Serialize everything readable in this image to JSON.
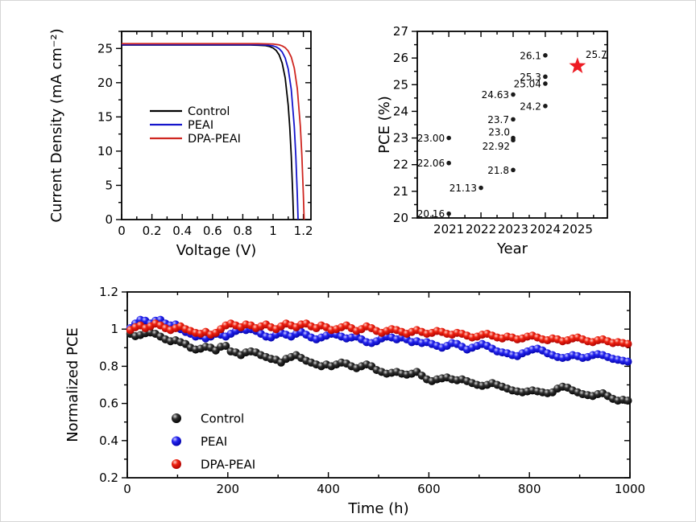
{
  "figure": {
    "background": "#ffffff"
  },
  "chart_data": [
    {
      "id": "jv-curves",
      "type": "line",
      "xlabel": "Voltage (V)",
      "ylabel": "Current Density (mA cm⁻²)",
      "xlim": [
        0,
        1.25
      ],
      "ylim": [
        0,
        27.5
      ],
      "x_major_ticks": [
        0,
        0.2,
        0.4,
        0.6,
        0.8,
        1.0,
        1.2
      ],
      "x_tick_labels": [
        "0",
        "0.2",
        "0.4",
        "0.6",
        "0.8",
        "1",
        "1.2"
      ],
      "x_minor_step": 0.1,
      "y_major_ticks": [
        0,
        5,
        10,
        15,
        20,
        25
      ],
      "y_tick_labels": [
        "0",
        "5",
        "10",
        "15",
        "20",
        "25"
      ],
      "y_minor_step": 2.5,
      "grid": false,
      "legend_position": "middle-left",
      "series": [
        {
          "name": "Control",
          "color": "#000000",
          "jsc": 25.5,
          "voc": 1.135,
          "points": [
            [
              0,
              25.5
            ],
            [
              0.1,
              25.5
            ],
            [
              0.2,
              25.5
            ],
            [
              0.3,
              25.5
            ],
            [
              0.4,
              25.5
            ],
            [
              0.5,
              25.5
            ],
            [
              0.6,
              25.5
            ],
            [
              0.7,
              25.5
            ],
            [
              0.8,
              25.5
            ],
            [
              0.85,
              25.5
            ],
            [
              0.9,
              25.48
            ],
            [
              0.95,
              25.41
            ],
            [
              0.975,
              25.3
            ],
            [
              1.0,
              25.07
            ],
            [
              1.02,
              24.72
            ],
            [
              1.04,
              24.07
            ],
            [
              1.06,
              22.87
            ],
            [
              1.08,
              20.69
            ],
            [
              1.1,
              16.67
            ],
            [
              1.11,
              13.55
            ],
            [
              1.12,
              9.32
            ],
            [
              1.13,
              3.58
            ],
            [
              1.135,
              0
            ]
          ]
        },
        {
          "name": "PEAI",
          "color": "#1414cc",
          "jsc": 25.55,
          "voc": 1.165,
          "points": [
            [
              0,
              25.55
            ],
            [
              0.1,
              25.55
            ],
            [
              0.2,
              25.55
            ],
            [
              0.3,
              25.55
            ],
            [
              0.4,
              25.55
            ],
            [
              0.5,
              25.55
            ],
            [
              0.6,
              25.55
            ],
            [
              0.7,
              25.55
            ],
            [
              0.8,
              25.55
            ],
            [
              0.9,
              25.55
            ],
            [
              0.95,
              25.5
            ],
            [
              1.0,
              25.38
            ],
            [
              1.02,
              25.23
            ],
            [
              1.04,
              24.97
            ],
            [
              1.06,
              24.49
            ],
            [
              1.08,
              23.61
            ],
            [
              1.1,
              22.0
            ],
            [
              1.12,
              19.02
            ],
            [
              1.14,
              13.57
            ],
            [
              1.15,
              9.34
            ],
            [
              1.16,
              3.59
            ],
            [
              1.165,
              0
            ]
          ]
        },
        {
          "name": "DPA-PEAI",
          "color": "#cf2620",
          "jsc": 25.7,
          "voc": 1.205,
          "points": [
            [
              0,
              25.7
            ],
            [
              0.1,
              25.7
            ],
            [
              0.2,
              25.7
            ],
            [
              0.3,
              25.7
            ],
            [
              0.4,
              25.7
            ],
            [
              0.5,
              25.7
            ],
            [
              0.6,
              25.7
            ],
            [
              0.7,
              25.7
            ],
            [
              0.8,
              25.7
            ],
            [
              0.9,
              25.7
            ],
            [
              1.0,
              25.65
            ],
            [
              1.04,
              25.53
            ],
            [
              1.06,
              25.38
            ],
            [
              1.08,
              25.12
            ],
            [
              1.1,
              24.63
            ],
            [
              1.12,
              23.75
            ],
            [
              1.14,
              22.13
            ],
            [
              1.16,
              19.13
            ],
            [
              1.18,
              13.65
            ],
            [
              1.19,
              9.38
            ],
            [
              1.2,
              3.61
            ],
            [
              1.205,
              0
            ]
          ]
        }
      ]
    },
    {
      "id": "pce-progress",
      "type": "scatter",
      "xlabel": "Year",
      "ylabel": "PCE (%)",
      "xlim": [
        2020.02,
        2025.93
      ],
      "ylim": [
        20,
        27
      ],
      "x_major_ticks": [
        2021,
        2022,
        2023,
        2024,
        2025
      ],
      "x_tick_labels": [
        "2021",
        "2022",
        "2023",
        "2024",
        "2025"
      ],
      "x_minor_step": 0.5,
      "y_major_ticks": [
        20,
        21,
        22,
        23,
        24,
        25,
        26,
        27
      ],
      "y_tick_labels": [
        "20",
        "21",
        "22",
        "23",
        "24",
        "25",
        "26",
        "27"
      ],
      "y_minor_step": 0.5,
      "grid": false,
      "point_color": "#1a1a1a",
      "points": [
        {
          "x": 2021,
          "y": 23.0,
          "label": "23.00",
          "label_pos": "left"
        },
        {
          "x": 2021,
          "y": 22.06,
          "label": "22.06",
          "label_pos": "left"
        },
        {
          "x": 2021,
          "y": 20.16,
          "label": "20.16",
          "label_pos": "left"
        },
        {
          "x": 2022,
          "y": 21.13,
          "label": "21.13",
          "label_pos": "left"
        },
        {
          "x": 2023,
          "y": 24.63,
          "label": "24.63",
          "label_pos": "left"
        },
        {
          "x": 2023,
          "y": 23.7,
          "label": "23.7",
          "label_pos": "left"
        },
        {
          "x": 2023,
          "y": 23.0,
          "label": "23.0",
          "label_pos": "above-left"
        },
        {
          "x": 2023,
          "y": 22.92,
          "label": "22.92",
          "label_pos": "below-left"
        },
        {
          "x": 2023,
          "y": 21.8,
          "label": "21.8",
          "label_pos": "left"
        },
        {
          "x": 2024,
          "y": 26.1,
          "label": "26.1",
          "label_pos": "left"
        },
        {
          "x": 2024,
          "y": 25.3,
          "label": "25.3",
          "label_pos": "left"
        },
        {
          "x": 2024,
          "y": 25.04,
          "label": "25.04",
          "label_pos": "left"
        },
        {
          "x": 2024,
          "y": 24.2,
          "label": "24.2",
          "label_pos": "left"
        }
      ],
      "highlight_point": {
        "x": 2025,
        "y": 25.7,
        "label": "25.7",
        "marker": "star",
        "color": "#ed1c24"
      }
    },
    {
      "id": "stability",
      "type": "scatter",
      "xlabel": "Time (h)",
      "ylabel": "Normalized PCE",
      "xlim": [
        0,
        1000
      ],
      "ylim": [
        0.2,
        1.2
      ],
      "x_major_ticks": [
        0,
        200,
        400,
        600,
        800,
        1000
      ],
      "x_tick_labels": [
        "0",
        "200",
        "400",
        "600",
        "800",
        "1000"
      ],
      "x_minor_step": 100,
      "y_major_ticks": [
        0.2,
        0.4,
        0.6,
        0.8,
        1.0,
        1.2
      ],
      "y_tick_labels": [
        "0.2",
        "0.4",
        "0.6",
        "0.8",
        "1",
        "1.2"
      ],
      "y_minor_step": 0.1,
      "grid": false,
      "legend_position": "bottom-left",
      "series": [
        {
          "name": "Control",
          "color": "#000000",
          "x_start": 6,
          "x_step": 10,
          "y": [
            0.975,
            0.962,
            0.968,
            0.978,
            0.982,
            0.975,
            0.96,
            0.945,
            0.935,
            0.94,
            0.93,
            0.92,
            0.9,
            0.89,
            0.895,
            0.905,
            0.9,
            0.885,
            0.905,
            0.91,
            0.88,
            0.875,
            0.86,
            0.875,
            0.88,
            0.875,
            0.86,
            0.85,
            0.84,
            0.835,
            0.82,
            0.84,
            0.85,
            0.86,
            0.845,
            0.83,
            0.82,
            0.81,
            0.8,
            0.81,
            0.8,
            0.81,
            0.82,
            0.815,
            0.8,
            0.79,
            0.8,
            0.81,
            0.8,
            0.78,
            0.77,
            0.76,
            0.765,
            0.77,
            0.76,
            0.755,
            0.76,
            0.77,
            0.75,
            0.73,
            0.72,
            0.73,
            0.735,
            0.74,
            0.73,
            0.725,
            0.73,
            0.72,
            0.71,
            0.7,
            0.695,
            0.7,
            0.71,
            0.7,
            0.69,
            0.68,
            0.67,
            0.665,
            0.66,
            0.665,
            0.67,
            0.665,
            0.66,
            0.655,
            0.66,
            0.68,
            0.69,
            0.685,
            0.67,
            0.66,
            0.65,
            0.645,
            0.64,
            0.65,
            0.655,
            0.64,
            0.625,
            0.615,
            0.62,
            0.615
          ]
        },
        {
          "name": "PEAI",
          "color": "#1313e0",
          "x_start": 6,
          "x_step": 10,
          "y": [
            1.005,
            1.03,
            1.05,
            1.045,
            1.03,
            1.045,
            1.05,
            1.03,
            1.02,
            1.025,
            1.0,
            0.985,
            0.975,
            0.96,
            0.965,
            0.95,
            0.96,
            0.975,
            0.97,
            0.96,
            0.975,
            0.99,
            1.0,
            0.995,
            1.0,
            0.99,
            0.975,
            0.96,
            0.955,
            0.97,
            0.98,
            0.97,
            0.96,
            0.975,
            0.985,
            0.97,
            0.955,
            0.945,
            0.955,
            0.965,
            0.975,
            0.97,
            0.96,
            0.95,
            0.955,
            0.96,
            0.945,
            0.93,
            0.925,
            0.935,
            0.95,
            0.96,
            0.955,
            0.945,
            0.955,
            0.945,
            0.93,
            0.935,
            0.925,
            0.93,
            0.92,
            0.91,
            0.9,
            0.91,
            0.925,
            0.92,
            0.905,
            0.89,
            0.9,
            0.91,
            0.92,
            0.91,
            0.895,
            0.88,
            0.875,
            0.87,
            0.86,
            0.855,
            0.87,
            0.88,
            0.89,
            0.895,
            0.885,
            0.87,
            0.86,
            0.85,
            0.845,
            0.85,
            0.86,
            0.855,
            0.845,
            0.85,
            0.86,
            0.865,
            0.86,
            0.85,
            0.84,
            0.835,
            0.83,
            0.825
          ]
        },
        {
          "name": "DPA-PEAI",
          "color": "#ee1111",
          "x_start": 6,
          "x_step": 10,
          "y": [
            0.995,
            1.01,
            1.02,
            1.005,
            1.015,
            1.03,
            1.02,
            1.005,
            0.995,
            1.005,
            1.015,
            1.0,
            0.99,
            0.98,
            0.975,
            0.985,
            0.97,
            0.98,
            1.0,
            1.02,
            1.03,
            1.02,
            1.01,
            1.025,
            1.02,
            1.005,
            1.015,
            1.025,
            1.01,
            1.0,
            1.015,
            1.03,
            1.02,
            1.01,
            1.025,
            1.03,
            1.015,
            1.005,
            1.02,
            1.01,
            0.995,
            1.0,
            1.01,
            1.02,
            1.005,
            0.99,
            1.0,
            1.015,
            1.005,
            0.99,
            0.98,
            0.99,
            1.0,
            0.995,
            0.985,
            0.975,
            0.985,
            0.995,
            0.985,
            0.975,
            0.98,
            0.99,
            0.985,
            0.975,
            0.97,
            0.98,
            0.975,
            0.965,
            0.955,
            0.96,
            0.97,
            0.975,
            0.965,
            0.955,
            0.95,
            0.96,
            0.955,
            0.945,
            0.95,
            0.96,
            0.965,
            0.955,
            0.945,
            0.94,
            0.95,
            0.945,
            0.935,
            0.94,
            0.95,
            0.955,
            0.945,
            0.935,
            0.93,
            0.94,
            0.945,
            0.935,
            0.925,
            0.93,
            0.925,
            0.92
          ]
        }
      ]
    }
  ]
}
